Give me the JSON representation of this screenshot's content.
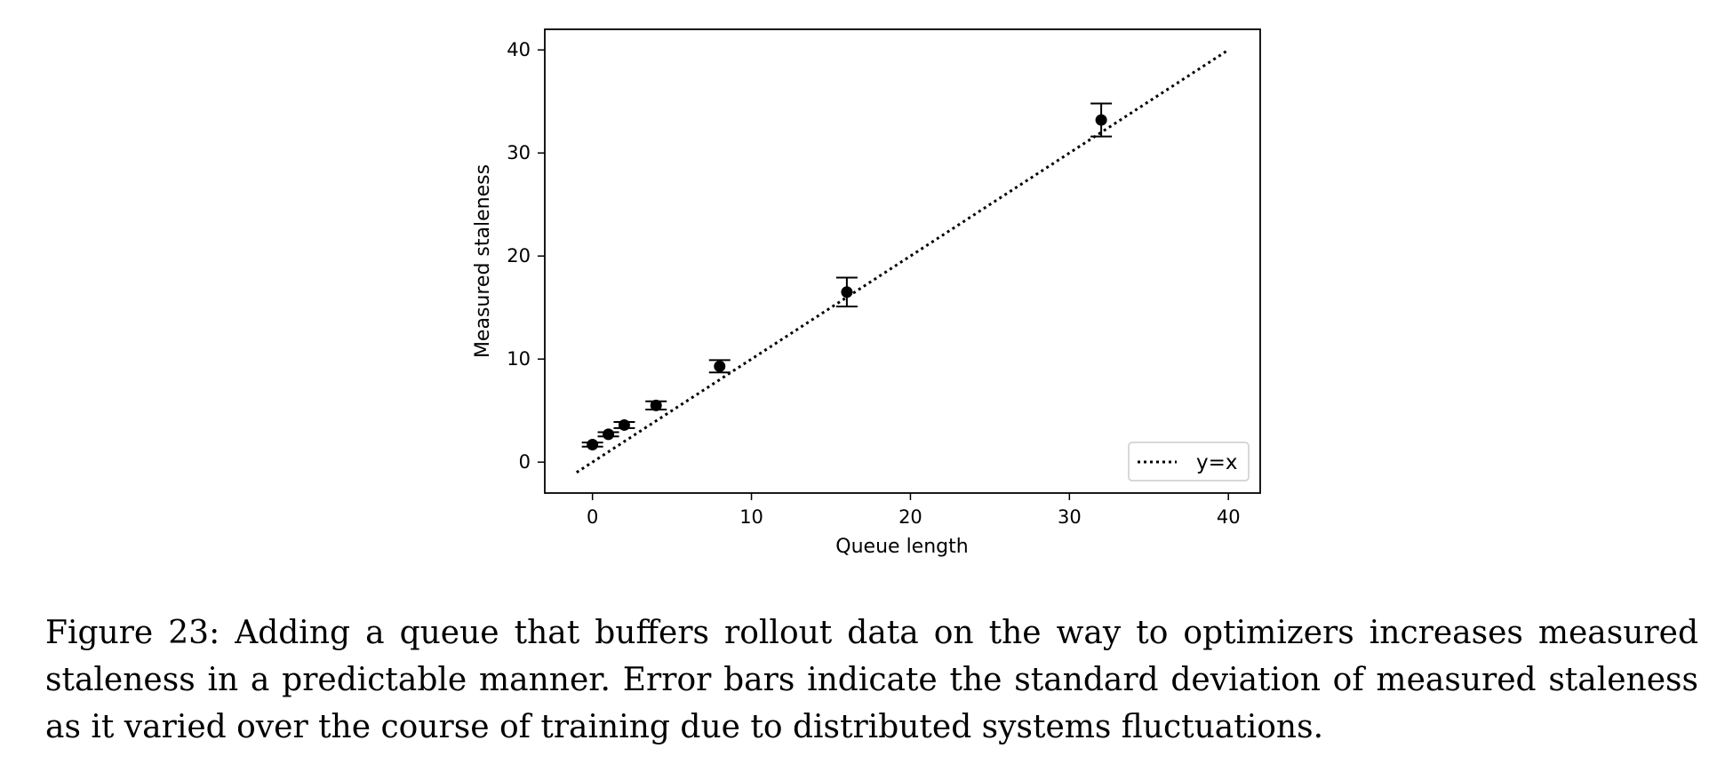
{
  "chart_data": {
    "type": "scatter",
    "xlabel": "Queue length",
    "ylabel": "Measured staleness",
    "xlim": [
      -3,
      42
    ],
    "ylim": [
      -3,
      42
    ],
    "xticks": [
      0,
      10,
      20,
      30,
      40
    ],
    "yticks": [
      0,
      10,
      20,
      30,
      40
    ],
    "grid": false,
    "legend_position": "bottom-right",
    "series": [
      {
        "kind": "errorbar",
        "color": "#000000",
        "points": [
          {
            "x": 0,
            "y": 1.7,
            "yerr": 0.2
          },
          {
            "x": 1,
            "y": 2.7,
            "yerr": 0.2
          },
          {
            "x": 2,
            "y": 3.6,
            "yerr": 0.3
          },
          {
            "x": 4,
            "y": 5.5,
            "yerr": 0.4
          },
          {
            "x": 8,
            "y": 9.3,
            "yerr": 0.6
          },
          {
            "x": 16,
            "y": 16.5,
            "yerr": 1.4
          },
          {
            "x": 32,
            "y": 33.2,
            "yerr": 1.6
          }
        ]
      },
      {
        "kind": "line",
        "name": "y=x",
        "style": "dotted",
        "color": "#000000",
        "x": [
          -1,
          40
        ],
        "y": [
          -1,
          40
        ]
      }
    ]
  },
  "caption": "Figure 23: Adding a queue that buffers rollout data on the way to optimizers increases measured staleness in a predictable manner. Error bars indicate the standard deviation of measured staleness as it varied over the course of training due to distributed systems fluctuations."
}
